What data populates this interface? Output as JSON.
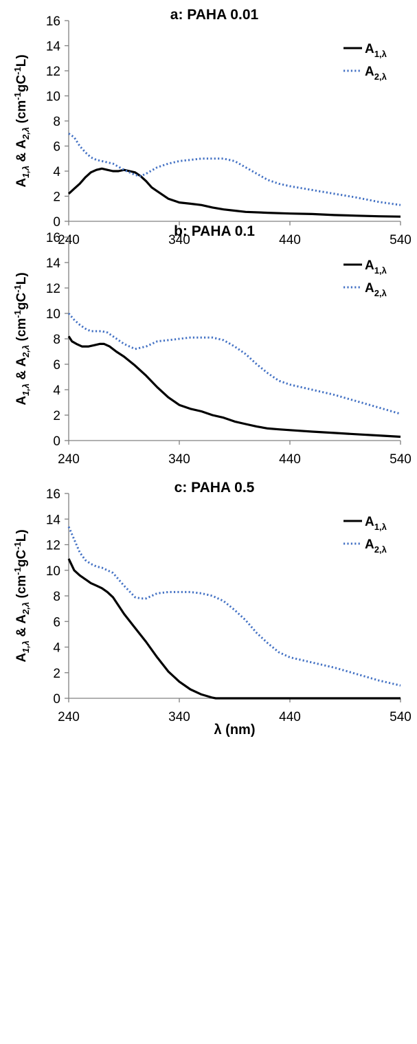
{
  "chart_data": [
    {
      "type": "line",
      "title": "a: PAHA 0.01",
      "ylabel": {
        "a": "A",
        "s1": "1,λ",
        "amp": " & A",
        "s2": "2,λ",
        "unit": " (cm",
        "e1": "-1",
        "g": "gC",
        "e2": "-1",
        "l": "L)"
      },
      "xlabel": "",
      "xlim": [
        240,
        540
      ],
      "ylim": [
        0,
        16
      ],
      "x_ticks": [
        240,
        340,
        440,
        540
      ],
      "y_ticks": [
        0,
        2,
        4,
        6,
        8,
        10,
        12,
        14,
        16
      ],
      "legend_position": "top-right",
      "series": [
        {
          "name": "A1,λ",
          "label": {
            "main": "A",
            "sub": "1,λ"
          },
          "style": "solid",
          "color": "#000000",
          "x": [
            240,
            245,
            250,
            255,
            260,
            265,
            270,
            275,
            280,
            285,
            290,
            295,
            300,
            305,
            310,
            315,
            320,
            330,
            340,
            350,
            360,
            370,
            380,
            390,
            400,
            420,
            440,
            460,
            480,
            500,
            520,
            540
          ],
          "y": [
            2.2,
            2.6,
            3.0,
            3.5,
            3.9,
            4.1,
            4.2,
            4.1,
            4.0,
            4.0,
            4.1,
            4.0,
            3.9,
            3.6,
            3.2,
            2.7,
            2.4,
            1.8,
            1.5,
            1.4,
            1.3,
            1.1,
            0.95,
            0.85,
            0.75,
            0.68,
            0.62,
            0.58,
            0.5,
            0.45,
            0.4,
            0.37
          ]
        },
        {
          "name": "A2,λ",
          "label": {
            "main": "A",
            "sub": "2,λ"
          },
          "style": "dotted",
          "color": "#4472C4",
          "x": [
            240,
            245,
            250,
            255,
            260,
            265,
            270,
            280,
            290,
            300,
            305,
            310,
            320,
            330,
            340,
            350,
            360,
            370,
            380,
            390,
            400,
            410,
            420,
            430,
            440,
            460,
            480,
            500,
            520,
            540
          ],
          "y": [
            7.0,
            6.7,
            6.0,
            5.5,
            5.1,
            4.9,
            4.8,
            4.6,
            4.1,
            3.7,
            3.6,
            3.8,
            4.3,
            4.6,
            4.8,
            4.9,
            5.0,
            5.0,
            5.0,
            4.8,
            4.3,
            3.8,
            3.3,
            3.0,
            2.8,
            2.5,
            2.2,
            1.9,
            1.55,
            1.3
          ]
        }
      ]
    },
    {
      "type": "line",
      "title": "b: PAHA 0.1",
      "ylabel": {
        "a": "A",
        "s1": "1,λ",
        "amp": " & A",
        "s2": "2,λ",
        "unit": " (cm",
        "e1": "-1",
        "g": "gC",
        "e2": "-1",
        "l": "L)"
      },
      "xlabel": "",
      "xlim": [
        240,
        540
      ],
      "ylim": [
        0,
        16
      ],
      "x_ticks": [
        240,
        340,
        440,
        540
      ],
      "y_ticks": [
        0,
        2,
        4,
        6,
        8,
        10,
        12,
        14,
        16
      ],
      "legend_position": "top-right",
      "series": [
        {
          "name": "A1,λ",
          "label": {
            "main": "A",
            "sub": "1,λ"
          },
          "style": "solid",
          "color": "#000000",
          "x": [
            240,
            243,
            247,
            252,
            258,
            263,
            268,
            272,
            277,
            283,
            290,
            300,
            310,
            320,
            330,
            340,
            350,
            360,
            370,
            380,
            390,
            400,
            410,
            420,
            430,
            440,
            460,
            480,
            500,
            520,
            540
          ],
          "y": [
            8.2,
            7.8,
            7.6,
            7.4,
            7.4,
            7.5,
            7.6,
            7.6,
            7.4,
            7.0,
            6.6,
            5.9,
            5.1,
            4.2,
            3.4,
            2.8,
            2.5,
            2.3,
            2.0,
            1.8,
            1.5,
            1.3,
            1.1,
            0.95,
            0.88,
            0.82,
            0.7,
            0.6,
            0.5,
            0.4,
            0.3
          ]
        },
        {
          "name": "A2,λ",
          "label": {
            "main": "A",
            "sub": "2,λ"
          },
          "style": "dotted",
          "color": "#4472C4",
          "x": [
            240,
            245,
            250,
            255,
            260,
            265,
            270,
            275,
            280,
            290,
            300,
            310,
            320,
            330,
            340,
            350,
            360,
            370,
            380,
            390,
            400,
            410,
            420,
            430,
            440,
            460,
            480,
            500,
            520,
            540
          ],
          "y": [
            10.0,
            9.5,
            9.1,
            8.8,
            8.6,
            8.6,
            8.6,
            8.5,
            8.2,
            7.6,
            7.2,
            7.4,
            7.8,
            7.9,
            8.0,
            8.1,
            8.1,
            8.1,
            7.9,
            7.4,
            6.8,
            6.0,
            5.3,
            4.7,
            4.4,
            4.0,
            3.6,
            3.1,
            2.6,
            2.1
          ]
        }
      ]
    },
    {
      "type": "line",
      "title": "c: PAHA 0.5",
      "ylabel": {
        "a": "A",
        "s1": "1,λ",
        "amp": " & A",
        "s2": "2,λ",
        "unit": " (cm",
        "e1": "-1",
        "g": "gC",
        "e2": "-1",
        "l": "L)"
      },
      "xlabel": "λ (nm)",
      "xlim": [
        240,
        540
      ],
      "ylim": [
        0,
        16
      ],
      "x_ticks": [
        240,
        340,
        440,
        540
      ],
      "y_ticks": [
        0,
        2,
        4,
        6,
        8,
        10,
        12,
        14,
        16
      ],
      "legend_position": "top-right",
      "series": [
        {
          "name": "A1,λ",
          "label": {
            "main": "A",
            "sub": "1,λ"
          },
          "style": "solid",
          "color": "#000000",
          "x": [
            240,
            245,
            250,
            255,
            260,
            265,
            270,
            275,
            280,
            290,
            300,
            310,
            320,
            330,
            340,
            350,
            360,
            370,
            373,
            380,
            400,
            440,
            480,
            540
          ],
          "y": [
            10.9,
            10.0,
            9.6,
            9.3,
            9.0,
            8.8,
            8.6,
            8.3,
            7.9,
            6.6,
            5.5,
            4.4,
            3.2,
            2.1,
            1.3,
            0.7,
            0.3,
            0.05,
            0,
            0,
            0,
            0,
            0,
            0
          ]
        },
        {
          "name": "A2,λ",
          "label": {
            "main": "A",
            "sub": "2,λ"
          },
          "style": "dotted",
          "color": "#4472C4",
          "x": [
            240,
            245,
            250,
            255,
            260,
            265,
            270,
            280,
            290,
            300,
            305,
            310,
            320,
            330,
            340,
            350,
            360,
            370,
            380,
            390,
            400,
            410,
            420,
            430,
            440,
            460,
            480,
            500,
            520,
            540
          ],
          "y": [
            13.4,
            12.4,
            11.4,
            10.8,
            10.5,
            10.3,
            10.2,
            9.8,
            8.8,
            7.9,
            7.8,
            7.8,
            8.2,
            8.3,
            8.3,
            8.3,
            8.2,
            8.0,
            7.6,
            6.9,
            6.1,
            5.1,
            4.3,
            3.6,
            3.2,
            2.8,
            2.4,
            1.9,
            1.4,
            1.0
          ]
        }
      ]
    }
  ]
}
